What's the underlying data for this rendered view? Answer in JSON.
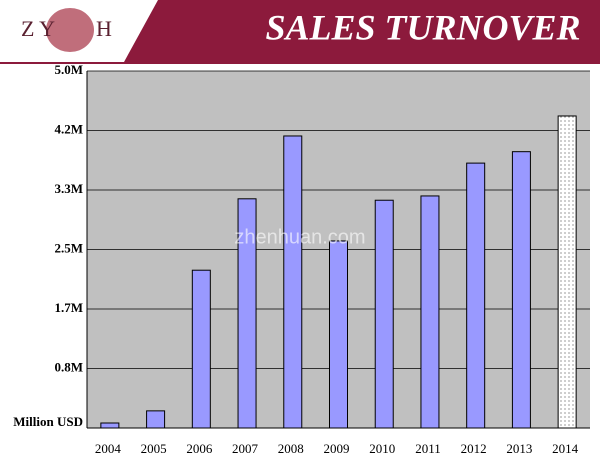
{
  "chart_data": {
    "type": "bar",
    "title": "SALES TURNOVER",
    "logo_left": "Z Y",
    "logo_right": "H",
    "watermark": "zhenhuan.com",
    "categories": [
      "2004",
      "2005",
      "2006",
      "2007",
      "2008",
      "2009",
      "2010",
      "2011",
      "2012",
      "2013",
      "2014"
    ],
    "values": [
      0.07,
      0.24,
      2.21,
      3.21,
      4.09,
      2.62,
      3.19,
      3.25,
      3.71,
      3.87,
      4.37
    ],
    "colors": [
      "#9999ff",
      "#9999ff",
      "#9999ff",
      "#9999ff",
      "#9999ff",
      "#9999ff",
      "#9999ff",
      "#9999ff",
      "#9999ff",
      "#9999ff",
      "#ffffff"
    ],
    "ylim": [
      0,
      5
    ],
    "yticks": [
      {
        "value": 0,
        "label": "Million USD"
      },
      {
        "value": 0.8333,
        "label": "0.8M"
      },
      {
        "value": 1.6667,
        "label": "1.7M"
      },
      {
        "value": 2.5,
        "label": "2.5M"
      },
      {
        "value": 3.3333,
        "label": "3.3M"
      },
      {
        "value": 4.1667,
        "label": "4.2M"
      },
      {
        "value": 5,
        "label": "5.0M"
      }
    ],
    "grid": true
  }
}
